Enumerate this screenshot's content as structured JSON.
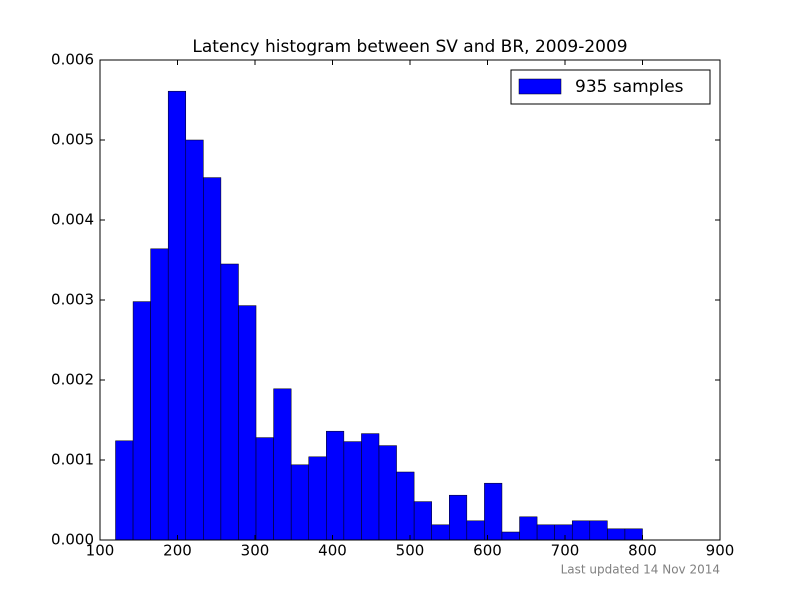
{
  "chart_data": {
    "type": "histogram",
    "title": "Latency histogram between SV and BR, 2009-2009",
    "bins": [
      120,
      142.67,
      165.33,
      188,
      210.67,
      233.33,
      256,
      278.67,
      301.33,
      324,
      346.67,
      369.33,
      392,
      414.67,
      437.33,
      460,
      482.67,
      505.33,
      528,
      550.67,
      573.33,
      596,
      618.67,
      641.33,
      664,
      686.67,
      709.33,
      732,
      754.67,
      777.33,
      800
    ],
    "series": [
      {
        "name": "935 samples",
        "color": "#0000ff",
        "values": [
          0.00124,
          0.00298,
          0.00364,
          0.00561,
          0.005,
          0.00453,
          0.00345,
          0.00293,
          0.00128,
          0.00189,
          0.00094,
          0.00104,
          0.00136,
          0.00123,
          0.00133,
          0.00118,
          0.00085,
          0.00048,
          0.00019,
          0.00056,
          0.00024,
          0.00071,
          0.0001,
          0.00029,
          0.00019,
          0.00019,
          0.00024,
          0.00024,
          0.00014,
          0.00014
        ]
      }
    ],
    "xlim": [
      100,
      900
    ],
    "xticks": [
      100,
      200,
      300,
      400,
      500,
      600,
      700,
      800,
      900
    ],
    "ylim": [
      0,
      0.006
    ],
    "yticks": [
      {
        "value": 0,
        "label": "0.000"
      },
      {
        "value": 0.001,
        "label": "0.001"
      },
      {
        "value": 0.002,
        "label": "0.002"
      },
      {
        "value": 0.003,
        "label": "0.003"
      },
      {
        "value": 0.004,
        "label": "0.004"
      },
      {
        "value": 0.005,
        "label": "0.005"
      },
      {
        "value": 0.006,
        "label": "0.006"
      }
    ],
    "legend": "upper right",
    "note": "Last updated 14 Nov 2014"
  }
}
